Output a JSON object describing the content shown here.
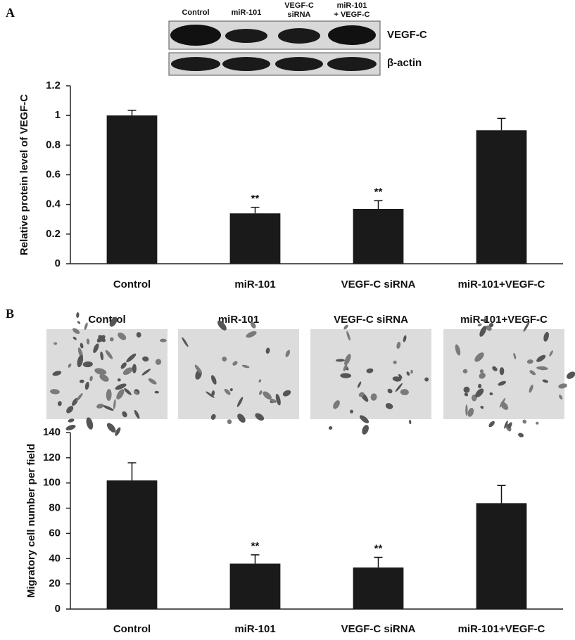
{
  "figure": {
    "panel_labels": [
      "A",
      "B"
    ],
    "blot": {
      "lanes": [
        [
          "Control"
        ],
        [
          "miR-101"
        ],
        [
          "VEGF-C",
          "siRNA"
        ],
        [
          "miR-101",
          "+ VEGF-C"
        ]
      ],
      "rows": [
        "VEGF-C",
        "β-actin"
      ]
    },
    "micrographs": [
      "Control",
      "miR-101",
      "VEGF-C siRNA",
      "miR-101+VEGF-C"
    ]
  },
  "chart_data": [
    {
      "type": "bar",
      "y_label": "Relative protein level of VEGF-C",
      "categories": [
        "Control",
        "miR-101",
        "VEGF-C siRNA",
        "miR-101+VEGF-C"
      ],
      "values": [
        1.0,
        0.34,
        0.37,
        0.9
      ],
      "errors": [
        0.035,
        0.04,
        0.055,
        0.08
      ],
      "annotations": [
        null,
        "**",
        "**",
        null
      ],
      "color": "#1a1a1a",
      "ylim": [
        0,
        1.2
      ],
      "yticks": [
        0,
        0.2,
        0.4,
        0.6,
        0.8,
        1,
        1.2
      ],
      "grid": false
    },
    {
      "type": "bar",
      "y_label": "Migratory cell number per field",
      "categories": [
        "Control",
        "miR-101",
        "VEGF-C siRNA",
        "miR-101+VEGF-C"
      ],
      "values": [
        102,
        36,
        33,
        84
      ],
      "errors": [
        14,
        7,
        8,
        14
      ],
      "annotations": [
        null,
        "**",
        "**",
        null
      ],
      "color": "#1a1a1a",
      "ylim": [
        0,
        140
      ],
      "yticks": [
        0,
        20,
        40,
        60,
        80,
        100,
        120,
        140
      ],
      "grid": false
    }
  ]
}
